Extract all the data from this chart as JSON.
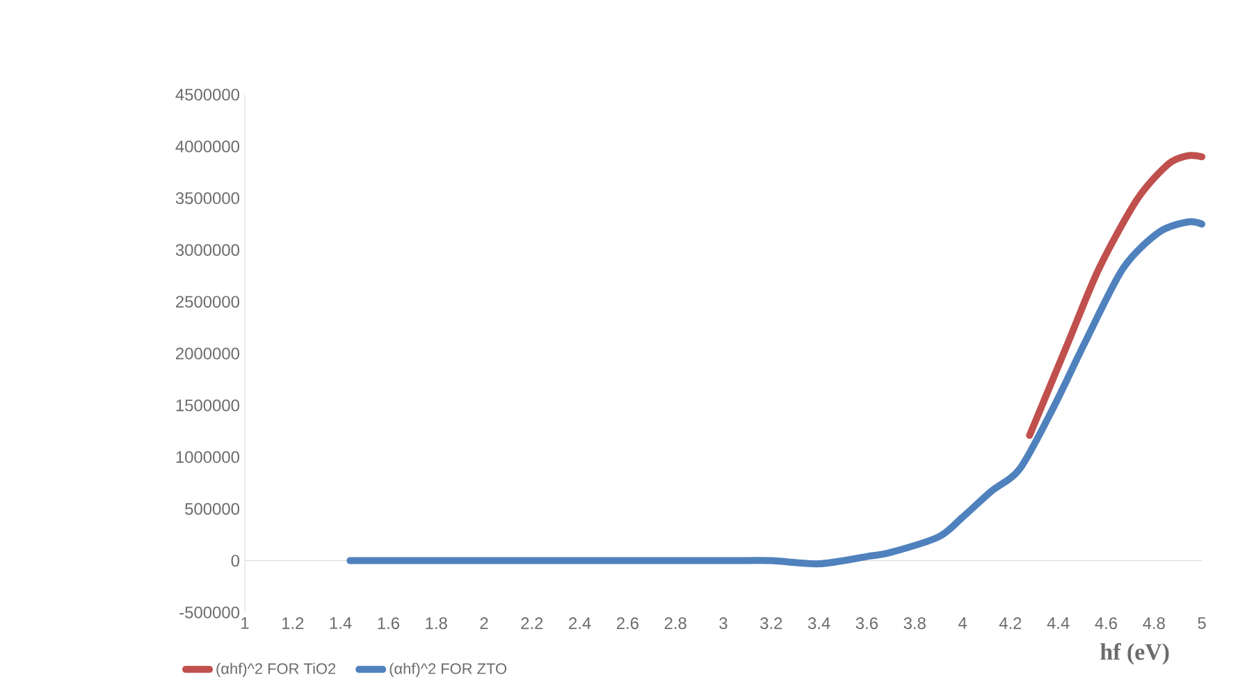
{
  "chart_data": {
    "type": "line",
    "xlabel": "hf (eV)",
    "xlim": [
      1,
      5
    ],
    "xticks": [
      1,
      1.2,
      1.4,
      1.6,
      1.8,
      2,
      2.2,
      2.4,
      2.6,
      2.8,
      3,
      3.2,
      3.4,
      3.6,
      3.8,
      4,
      4.2,
      4.4,
      4.6,
      4.8,
      5
    ],
    "ylim": [
      -500000,
      4500000
    ],
    "yticks": [
      -500000,
      0,
      500000,
      1000000,
      1500000,
      2000000,
      2500000,
      3000000,
      3500000,
      4000000,
      4500000
    ],
    "legend": "bottom",
    "marker": "none",
    "line_style": "solid",
    "series": [
      {
        "name": "(αhf)^2 FOR TiO2",
        "color": "#c0504d",
        "x": [
          4.28,
          4.44,
          4.57,
          4.73,
          4.86,
          4.94,
          5.0
        ],
        "values": [
          1210000,
          2100000,
          2820000,
          3490000,
          3830000,
          3910000,
          3900000
        ]
      },
      {
        "name": "(αhf)^2 FOR ZTO",
        "color": "#4f81bd",
        "x": [
          1.44,
          1.8,
          2.4,
          3.0,
          3.2,
          3.4,
          3.6,
          3.7,
          3.9,
          4.0,
          4.12,
          4.24,
          4.38,
          4.51,
          4.67,
          4.82,
          4.94,
          5.0
        ],
        "values": [
          0,
          0,
          0,
          0,
          0,
          -30000,
          40000,
          80000,
          230000,
          420000,
          670000,
          890000,
          1480000,
          2100000,
          2820000,
          3170000,
          3270000,
          3250000
        ]
      }
    ]
  }
}
